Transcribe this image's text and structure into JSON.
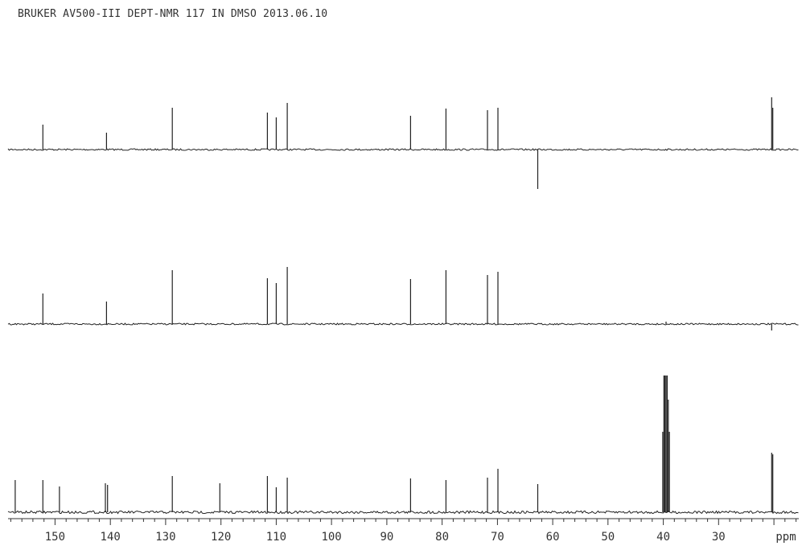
{
  "chart_data": {
    "type": "line",
    "title": "BRUKER AV500-III DEPT-NMR 117 IN DMSO 2013.06.10",
    "xlabel": "ppm",
    "x_reversed": true,
    "xlim": [
      158.5,
      15.5
    ],
    "ticks": [
      150,
      140,
      130,
      120,
      110,
      100,
      90,
      80,
      70,
      60,
      50,
      40,
      30
    ],
    "grid": false,
    "colors": {
      "trace": "#222222",
      "axis": "#333333"
    },
    "series": [
      {
        "name": "",
        "peaks": [
          {
            "ppm": 152.2,
            "height": 31
          },
          {
            "ppm": 140.7,
            "height": 21
          },
          {
            "ppm": 128.8,
            "height": 52
          },
          {
            "ppm": 111.6,
            "height": 46
          },
          {
            "ppm": 110.0,
            "height": 40
          },
          {
            "ppm": 108.0,
            "height": 58
          },
          {
            "ppm": 85.7,
            "height": 42
          },
          {
            "ppm": 79.3,
            "height": 51
          },
          {
            "ppm": 71.8,
            "height": 49
          },
          {
            "ppm": 69.9,
            "height": 52
          },
          {
            "ppm": 62.7,
            "height": -49
          },
          {
            "ppm": 20.4,
            "height": 65
          },
          {
            "ppm": 20.2,
            "height": 52
          }
        ]
      },
      {
        "name": "",
        "peaks": [
          {
            "ppm": 152.2,
            "height": 38
          },
          {
            "ppm": 140.7,
            "height": 28
          },
          {
            "ppm": 128.8,
            "height": 67
          },
          {
            "ppm": 111.6,
            "height": 57
          },
          {
            "ppm": 110.0,
            "height": 51
          },
          {
            "ppm": 108.0,
            "height": 71
          },
          {
            "ppm": 85.7,
            "height": 56
          },
          {
            "ppm": 79.3,
            "height": 67
          },
          {
            "ppm": 71.8,
            "height": 61
          },
          {
            "ppm": 69.9,
            "height": 65
          },
          {
            "ppm": 39.5,
            "height": 3
          },
          {
            "ppm": 20.4,
            "height": -8
          }
        ]
      },
      {
        "name": "",
        "peaks": [
          {
            "ppm": 157.2,
            "height": 40
          },
          {
            "ppm": 152.2,
            "height": 40
          },
          {
            "ppm": 149.2,
            "height": 32
          },
          {
            "ppm": 140.9,
            "height": 36
          },
          {
            "ppm": 140.5,
            "height": 34
          },
          {
            "ppm": 128.8,
            "height": 45
          },
          {
            "ppm": 120.2,
            "height": 36
          },
          {
            "ppm": 111.6,
            "height": 45
          },
          {
            "ppm": 110.0,
            "height": 31
          },
          {
            "ppm": 108.0,
            "height": 43
          },
          {
            "ppm": 85.7,
            "height": 42
          },
          {
            "ppm": 79.3,
            "height": 40
          },
          {
            "ppm": 71.8,
            "height": 43
          },
          {
            "ppm": 69.9,
            "height": 54
          },
          {
            "ppm": 62.7,
            "height": 35
          },
          {
            "ppm": 40.1,
            "height": 100
          },
          {
            "ppm": 39.9,
            "height": 170
          },
          {
            "ppm": 39.7,
            "height": 170
          },
          {
            "ppm": 39.5,
            "height": 170
          },
          {
            "ppm": 39.3,
            "height": 170
          },
          {
            "ppm": 39.1,
            "height": 140
          },
          {
            "ppm": 38.9,
            "height": 100
          },
          {
            "ppm": 20.4,
            "height": 74
          },
          {
            "ppm": 20.2,
            "height": 72
          }
        ]
      }
    ]
  }
}
